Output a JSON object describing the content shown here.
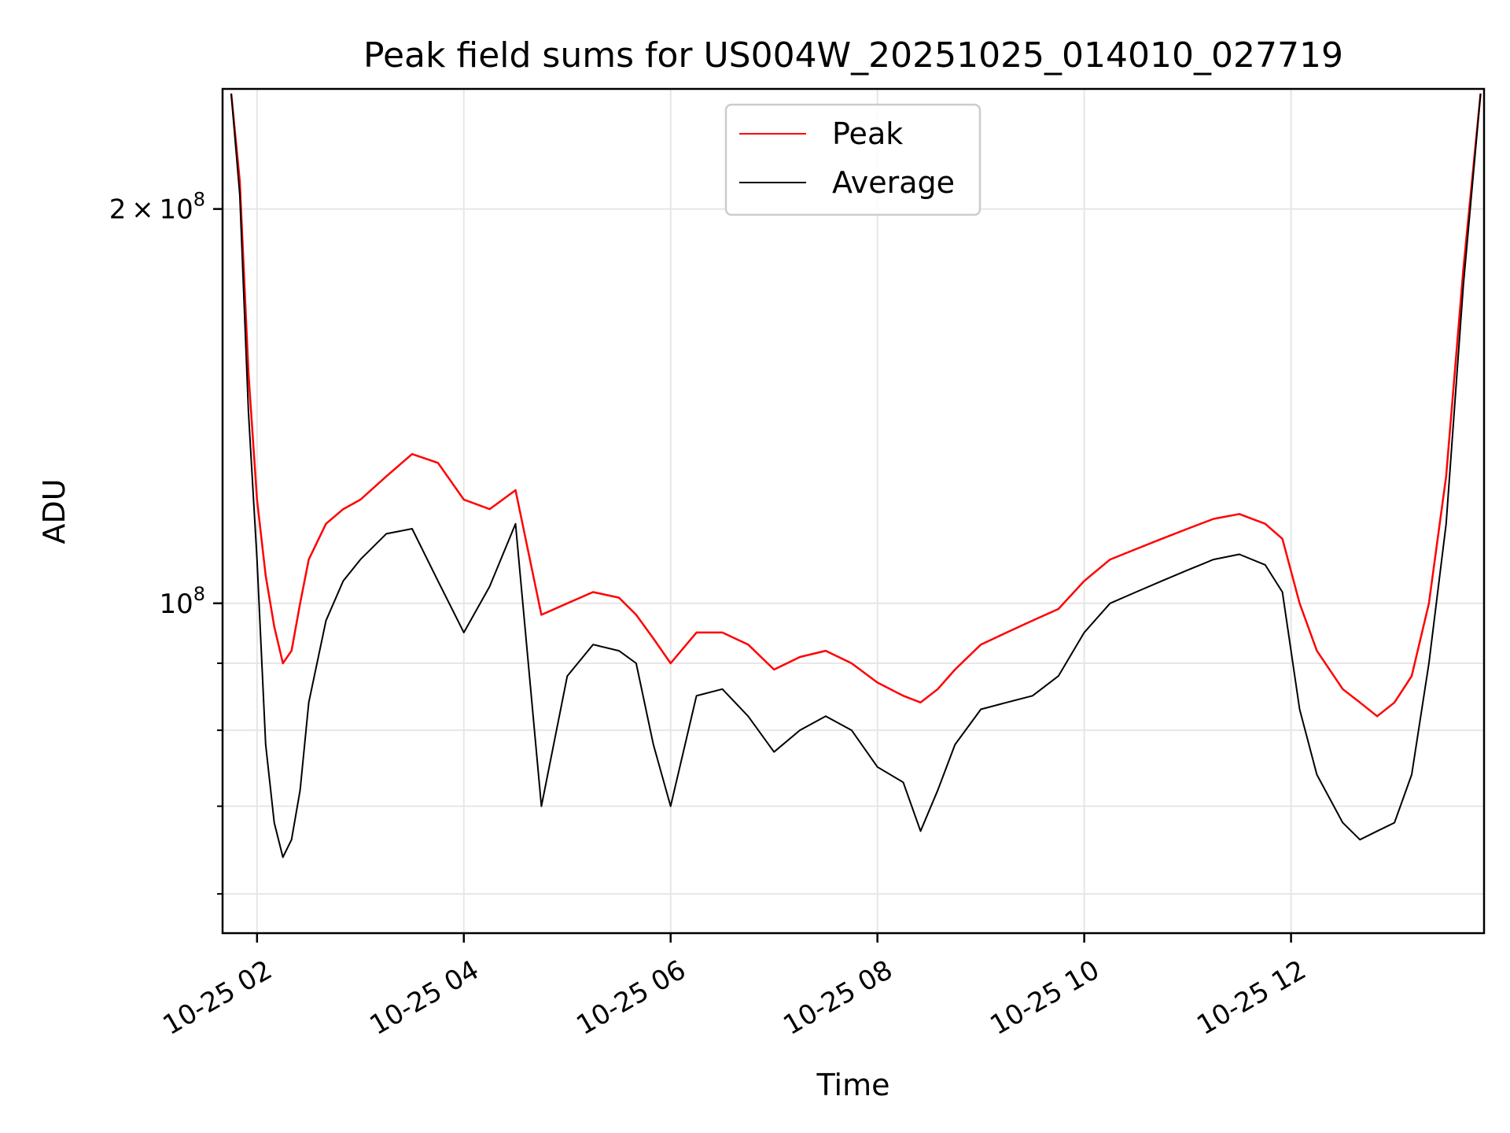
{
  "chart_data": {
    "type": "line",
    "title": "Peak field sums for US004W_20251025_014010_027719",
    "xlabel": "Time",
    "ylabel": "ADU",
    "y_scale": "log",
    "grid": true,
    "legend_position": "top-center",
    "xlim": [
      "2025-10-25 01:40",
      "2025-10-25 13:52"
    ],
    "ylim": [
      56000000,
      247000000
    ],
    "x_ticks": [
      "2025-10-25 02:00",
      "2025-10-25 04:00",
      "2025-10-25 06:00",
      "2025-10-25 08:00",
      "2025-10-25 10:00",
      "2025-10-25 12:00"
    ],
    "x_tick_labels": [
      "10-25 02",
      "10-25 04",
      "10-25 06",
      "10-25 08",
      "10-25 10",
      "10-25 12"
    ],
    "y_major_ticks": [
      {
        "value": 100000000,
        "base": "10",
        "exponent": "8"
      },
      {
        "value": 200000000,
        "coefficient": "2",
        "base": "10",
        "exponent": "8"
      }
    ],
    "y_minor_ticks": [
      60000000,
      70000000,
      80000000,
      90000000
    ],
    "colors": {
      "peak": "#ff0000",
      "average": "#000000"
    },
    "series": [
      {
        "name": "Peak",
        "color": "#ff0000",
        "x": [
          "2025-10-25 01:45",
          "2025-10-25 01:50",
          "2025-10-25 01:55",
          "2025-10-25 02:00",
          "2025-10-25 02:05",
          "2025-10-25 02:10",
          "2025-10-25 02:15",
          "2025-10-25 02:20",
          "2025-10-25 02:25",
          "2025-10-25 02:30",
          "2025-10-25 02:40",
          "2025-10-25 02:50",
          "2025-10-25 03:00",
          "2025-10-25 03:15",
          "2025-10-25 03:30",
          "2025-10-25 03:45",
          "2025-10-25 04:00",
          "2025-10-25 04:15",
          "2025-10-25 04:30",
          "2025-10-25 04:45",
          "2025-10-25 05:00",
          "2025-10-25 05:15",
          "2025-10-25 05:30",
          "2025-10-25 05:40",
          "2025-10-25 05:50",
          "2025-10-25 06:00",
          "2025-10-25 06:15",
          "2025-10-25 06:30",
          "2025-10-25 06:45",
          "2025-10-25 07:00",
          "2025-10-25 07:15",
          "2025-10-25 07:30",
          "2025-10-25 07:45",
          "2025-10-25 08:00",
          "2025-10-25 08:15",
          "2025-10-25 08:25",
          "2025-10-25 08:35",
          "2025-10-25 08:45",
          "2025-10-25 09:00",
          "2025-10-25 09:15",
          "2025-10-25 09:30",
          "2025-10-25 09:45",
          "2025-10-25 10:00",
          "2025-10-25 10:15",
          "2025-10-25 10:30",
          "2025-10-25 10:45",
          "2025-10-25 11:00",
          "2025-10-25 11:15",
          "2025-10-25 11:30",
          "2025-10-25 11:45",
          "2025-10-25 11:55",
          "2025-10-25 12:05",
          "2025-10-25 12:15",
          "2025-10-25 12:30",
          "2025-10-25 12:40",
          "2025-10-25 12:50",
          "2025-10-25 13:00",
          "2025-10-25 13:10",
          "2025-10-25 13:20",
          "2025-10-25 13:30",
          "2025-10-25 13:40",
          "2025-10-25 13:50"
        ],
        "values": [
          245000000,
          210000000,
          150000000,
          120000000,
          105000000,
          96000000,
          90000000,
          92000000,
          100000000,
          108000000,
          115000000,
          118000000,
          120000000,
          125000000,
          130000000,
          128000000,
          120000000,
          118000000,
          122000000,
          98000000,
          100000000,
          102000000,
          101000000,
          98000000,
          94000000,
          90000000,
          95000000,
          95000000,
          93000000,
          89000000,
          91000000,
          92000000,
          90000000,
          87000000,
          85000000,
          84000000,
          86000000,
          89000000,
          93000000,
          95000000,
          97000000,
          99000000,
          104000000,
          108000000,
          110000000,
          112000000,
          114000000,
          116000000,
          117000000,
          115000000,
          112000000,
          100000000,
          92000000,
          86000000,
          84000000,
          82000000,
          84000000,
          88000000,
          100000000,
          125000000,
          180000000,
          245000000
        ]
      },
      {
        "name": "Average",
        "color": "#000000",
        "x": [
          "2025-10-25 01:45",
          "2025-10-25 01:50",
          "2025-10-25 01:55",
          "2025-10-25 02:00",
          "2025-10-25 02:05",
          "2025-10-25 02:10",
          "2025-10-25 02:15",
          "2025-10-25 02:20",
          "2025-10-25 02:25",
          "2025-10-25 02:30",
          "2025-10-25 02:40",
          "2025-10-25 02:50",
          "2025-10-25 03:00",
          "2025-10-25 03:15",
          "2025-10-25 03:30",
          "2025-10-25 03:45",
          "2025-10-25 04:00",
          "2025-10-25 04:15",
          "2025-10-25 04:30",
          "2025-10-25 04:45",
          "2025-10-25 05:00",
          "2025-10-25 05:15",
          "2025-10-25 05:30",
          "2025-10-25 05:40",
          "2025-10-25 05:50",
          "2025-10-25 06:00",
          "2025-10-25 06:15",
          "2025-10-25 06:30",
          "2025-10-25 06:45",
          "2025-10-25 07:00",
          "2025-10-25 07:15",
          "2025-10-25 07:30",
          "2025-10-25 07:45",
          "2025-10-25 08:00",
          "2025-10-25 08:15",
          "2025-10-25 08:25",
          "2025-10-25 08:35",
          "2025-10-25 08:45",
          "2025-10-25 09:00",
          "2025-10-25 09:15",
          "2025-10-25 09:30",
          "2025-10-25 09:45",
          "2025-10-25 10:00",
          "2025-10-25 10:15",
          "2025-10-25 10:30",
          "2025-10-25 10:45",
          "2025-10-25 11:00",
          "2025-10-25 11:15",
          "2025-10-25 11:30",
          "2025-10-25 11:45",
          "2025-10-25 11:55",
          "2025-10-25 12:05",
          "2025-10-25 12:15",
          "2025-10-25 12:30",
          "2025-10-25 12:40",
          "2025-10-25 12:50",
          "2025-10-25 13:00",
          "2025-10-25 13:10",
          "2025-10-25 13:20",
          "2025-10-25 13:30",
          "2025-10-25 13:40",
          "2025-10-25 13:50"
        ],
        "values": [
          245000000,
          205000000,
          140000000,
          108000000,
          78000000,
          68000000,
          64000000,
          66000000,
          72000000,
          84000000,
          97000000,
          104000000,
          108000000,
          113000000,
          114000000,
          104000000,
          95000000,
          103000000,
          115000000,
          70000000,
          88000000,
          93000000,
          92000000,
          90000000,
          78000000,
          70000000,
          85000000,
          86000000,
          82000000,
          77000000,
          80000000,
          82000000,
          80000000,
          75000000,
          73000000,
          67000000,
          72000000,
          78000000,
          83000000,
          84000000,
          85000000,
          88000000,
          95000000,
          100000000,
          102000000,
          104000000,
          106000000,
          108000000,
          109000000,
          107000000,
          102000000,
          83000000,
          74000000,
          68000000,
          66000000,
          67000000,
          68000000,
          74000000,
          90000000,
          115000000,
          175000000,
          245000000
        ]
      }
    ]
  }
}
